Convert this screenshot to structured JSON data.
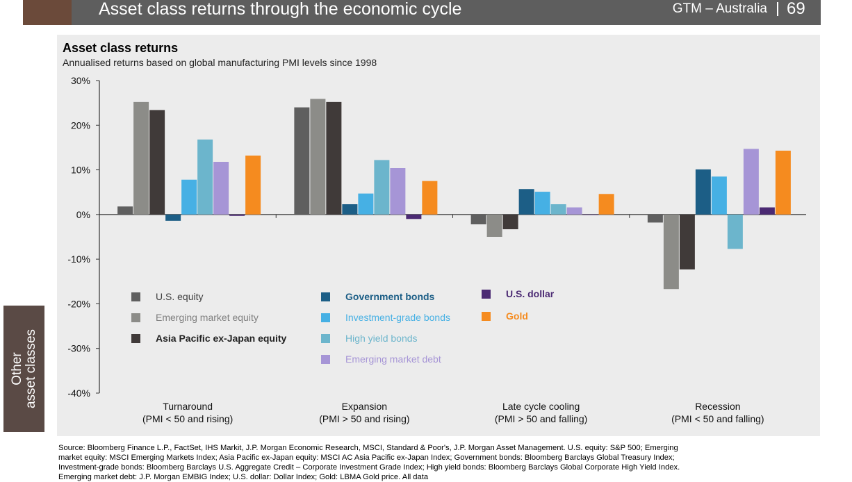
{
  "header": {
    "title": "Asset class returns through the economic cycle",
    "region": "GTM – Australia",
    "page_number": "69"
  },
  "side_tab": {
    "line1": "Other",
    "line2": "asset classes"
  },
  "chart_data": {
    "type": "bar",
    "title": "Asset class returns",
    "subtitle": "Annualised returns based on global manufacturing PMI levels since 1998",
    "ylim": [
      -40,
      30
    ],
    "yticks": [
      "30%",
      "20%",
      "10%",
      "0%",
      "-10%",
      "-20%",
      "-30%",
      "-40%"
    ],
    "ytick_values": [
      30,
      20,
      10,
      0,
      -10,
      -20,
      -30,
      -40
    ],
    "categories": [
      {
        "line1": "Turnaround",
        "line2": "(PMI < 50 and rising)"
      },
      {
        "line1": "Expansion",
        "line2": "(PMI > 50 and rising)"
      },
      {
        "line1": "Late cycle cooling",
        "line2": "(PMI > 50 and falling)"
      },
      {
        "line1": "Recession",
        "line2": "(PMI < 50 and falling)"
      }
    ],
    "series": [
      {
        "name": "U.S. equity",
        "color": "#5f5f5f",
        "label_color": "#404040",
        "values": [
          1.8,
          24.0,
          -2.2,
          -1.8
        ]
      },
      {
        "name": "Emerging market equity",
        "color": "#8c8c88",
        "label_color": "#7f7f7f",
        "values": [
          25.2,
          25.9,
          -5.0,
          -16.7
        ]
      },
      {
        "name": "Asia Pacific ex-Japan equity",
        "color": "#403a39",
        "label_color": "#222222",
        "values": [
          23.4,
          25.2,
          -3.3,
          -12.3
        ]
      },
      {
        "name": "Government bonds",
        "color": "#1c5e86",
        "label_color": "#1c5e86",
        "values": [
          -1.4,
          2.3,
          5.7,
          10.1
        ]
      },
      {
        "name": "Investment-grade bonds",
        "color": "#46b0e4",
        "label_color": "#46b0e4",
        "values": [
          7.8,
          4.7,
          5.1,
          8.5
        ]
      },
      {
        "name": "High yield bonds",
        "color": "#6cb5cc",
        "label_color": "#6cb5cc",
        "values": [
          16.8,
          12.2,
          2.3,
          -7.7
        ]
      },
      {
        "name": "Emerging market debt",
        "color": "#a695d6",
        "label_color": "#a695d6",
        "values": [
          11.8,
          10.4,
          1.6,
          14.7
        ]
      },
      {
        "name": "U.S. dollar",
        "color": "#4b2a73",
        "label_color": "#4b2a73",
        "values": [
          -0.3,
          -1.0,
          0.0,
          1.6
        ]
      },
      {
        "name": "Gold",
        "color": "#f58b1f",
        "label_color": "#f58b1f",
        "values": [
          13.2,
          7.5,
          4.6,
          14.3
        ]
      }
    ],
    "legend_position": "lower-left inside plot",
    "grid": false
  },
  "source": {
    "text": "Source: Bloomberg Finance L.P., FactSet, IHS Markit, J.P. Morgan Economic Research, MSCI, Standard & Poor's, J.P. Morgan Asset Management. U.S. equity: S&P 500; Emerging market equity: MSCI Emerging Markets Index; Asia Pacific ex-Japan equity: MSCI AC Asia Pacific ex-Japan Index; Government bonds: Bloomberg Barclays Global Treasury Index; Investment-grade bonds: Bloomberg Barclays U.S. Aggregate Credit – Corporate Investment Grade Index; High yield bonds: Bloomberg Barclays Global Corporate High Yield Index. Emerging market debt: J.P. Morgan EMBIG Index; U.S. dollar: Dollar Index; Gold: LBMA Gold price. All data"
  },
  "colors": {
    "header_bar": "#5e5e5e",
    "header_accent": "#6b4a3a",
    "side_tab": "#5a4a45",
    "panel": "#ececec"
  }
}
